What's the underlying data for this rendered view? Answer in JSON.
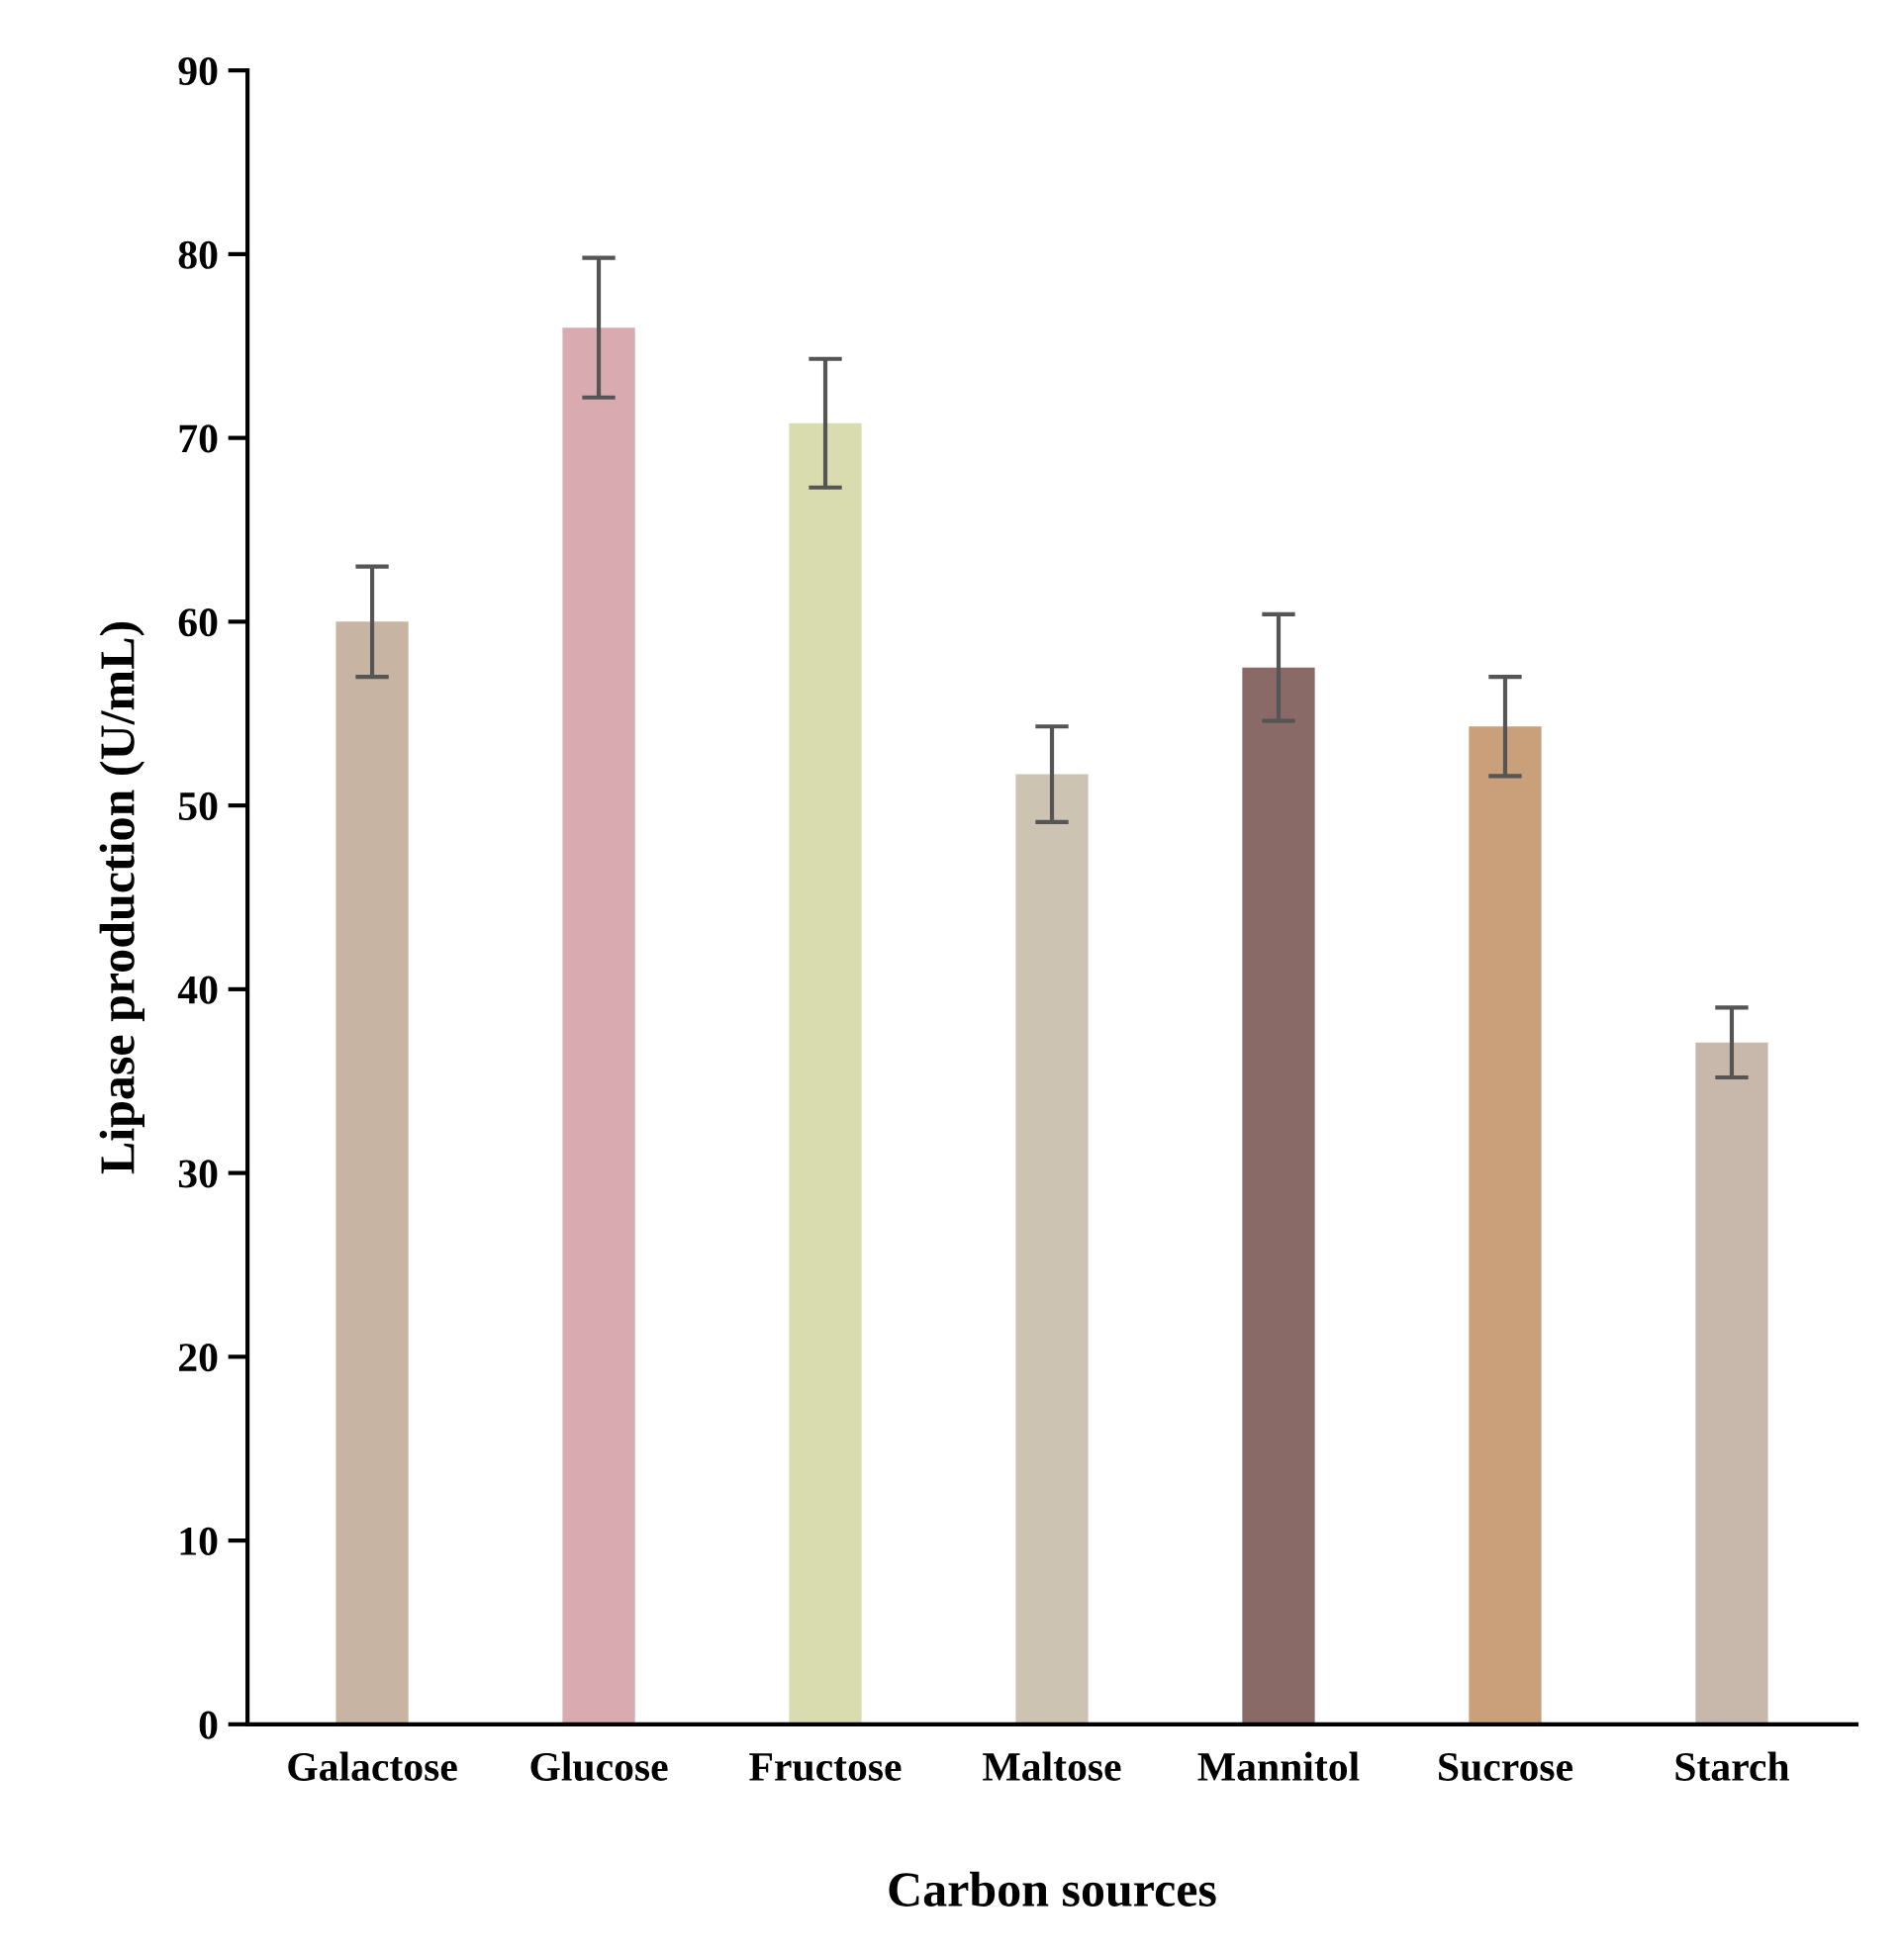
{
  "chart_data": {
    "type": "bar",
    "xlabel": "Carbon sources",
    "ylabel": "Lipase production (U/mL)",
    "categories": [
      "Galactose",
      "Glucose",
      "Fructose",
      "Maltose",
      "Mannitol",
      "Sucrose",
      "Starch"
    ],
    "values": [
      60,
      76,
      70.8,
      51.7,
      57.5,
      54.3,
      37.1
    ],
    "errors": [
      3,
      3.8,
      3.5,
      2.6,
      2.9,
      2.7,
      1.9
    ],
    "colors": [
      "#c8b4a2",
      "#d9aab0",
      "#d8dcae",
      "#cdc3b2",
      "#8a6a66",
      "#c9a07a",
      "#c8b8ac"
    ],
    "ylim": [
      0,
      90
    ],
    "yticks": [
      0,
      10,
      20,
      30,
      40,
      50,
      60,
      70,
      80,
      90
    ],
    "grid": false
  }
}
